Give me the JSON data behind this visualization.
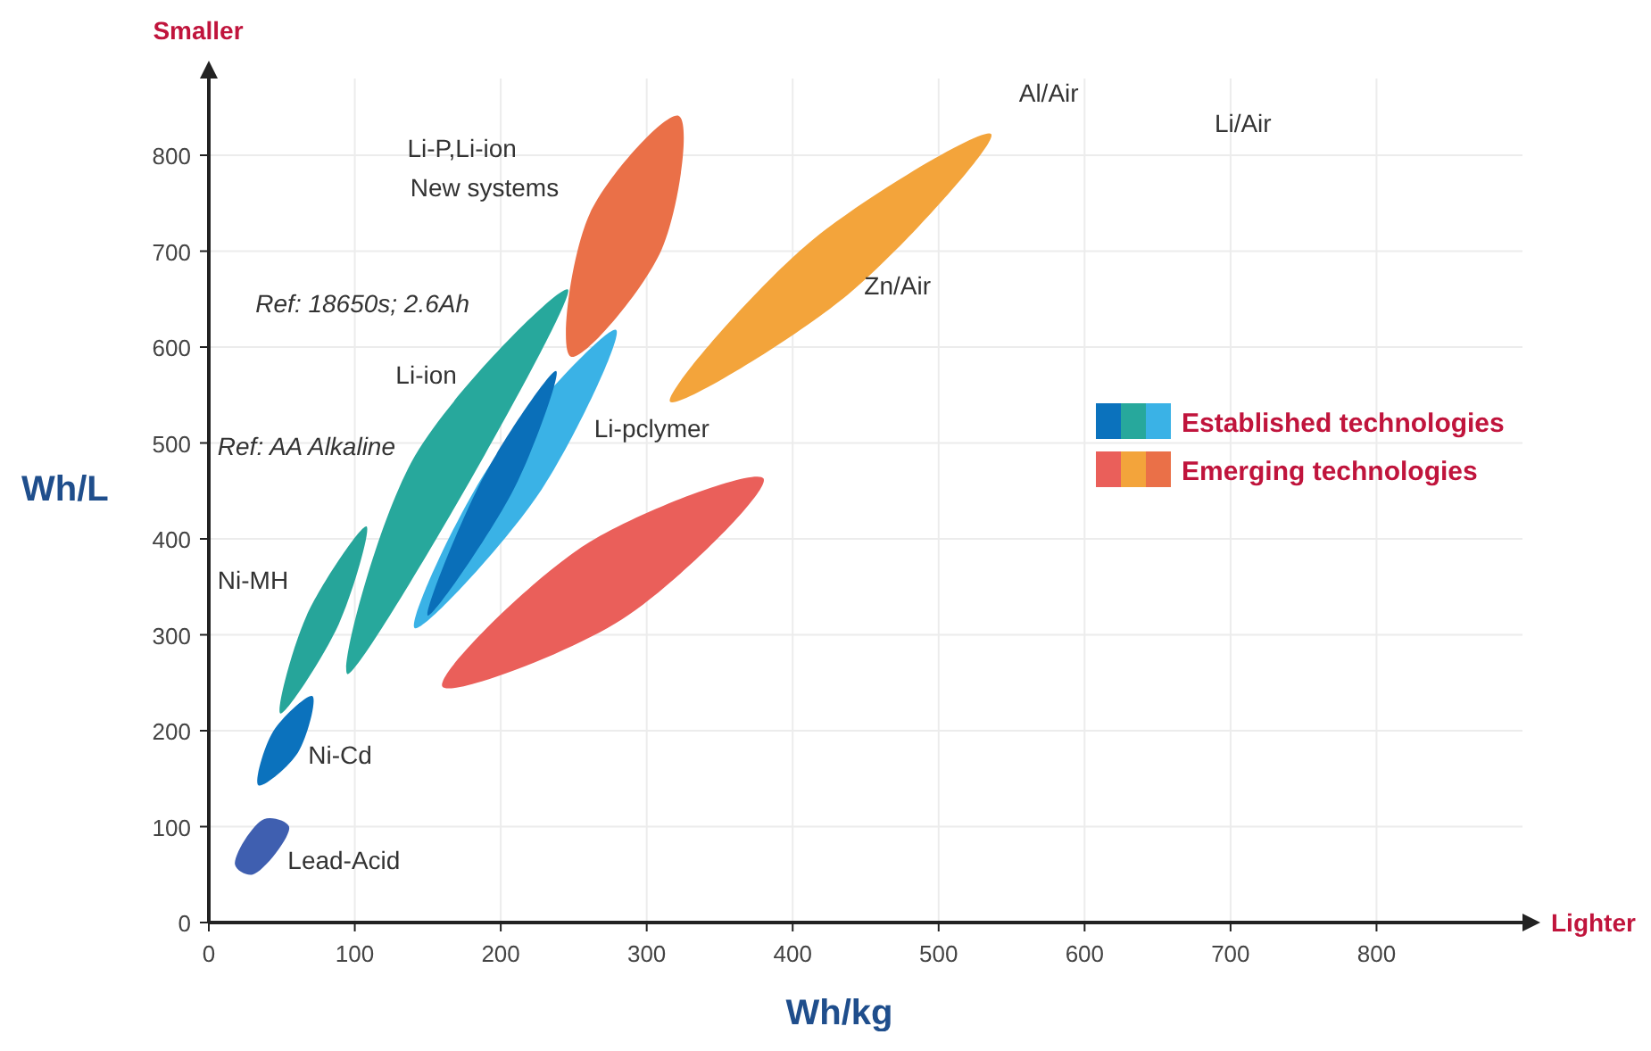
{
  "chart_data": {
    "type": "area",
    "xlabel": "Wh/kg",
    "ylabel": "Wh/L",
    "xlim": [
      0,
      900
    ],
    "ylim": [
      0,
      880
    ],
    "xticks": [
      0,
      100,
      200,
      300,
      400,
      500,
      600,
      700,
      800
    ],
    "yticks": [
      0,
      100,
      200,
      300,
      400,
      500,
      600,
      700,
      800
    ],
    "grid": true,
    "series": [
      {
        "color": "#3f5fb0",
        "x": [
          18,
          30,
          55,
          38
        ],
        "values": [
          60,
          50,
          100,
          108
        ]
      },
      {
        "color": "#0b72bd",
        "x": [
          34,
          61,
          71,
          44
        ],
        "values": [
          143,
          177,
          236,
          199
        ]
      },
      {
        "color": "#26a59a",
        "x": [
          49,
          89,
          108,
          67
        ],
        "values": [
          218,
          311,
          413,
          320
        ]
      },
      {
        "color": "#27a89c",
        "x": [
          95,
          199,
          246,
          141
        ],
        "values": [
          259,
          null,
          660,
          486
        ]
      },
      {
        "color": "#3ab2e6",
        "x": [
          141,
          226,
          279,
          193
        ],
        "values": [
          307,
          447,
          618,
          478
        ]
      },
      {
        "color": "#0a6fb9",
        "x": [
          150,
          209,
          238,
          189
        ],
        "values": [
          320,
          452,
          575,
          467
        ]
      },
      {
        "color": "#ea7048",
        "x": [
          248,
          310,
          322,
          261
        ],
        "values": [
          590,
          701,
          841,
          739
        ]
      },
      {
        "color": "#f3a43b",
        "x": [
          316,
          438,
          536,
          413
        ],
        "values": [
          543,
          655,
          822,
          711
        ]
      },
      {
        "color": "#ea5f5a",
        "x": [
          160,
          283,
          380,
          258
        ],
        "values": [
          246,
          316,
          463,
          394
        ]
      }
    ],
    "annotations": [
      "Smaller",
      "Lighter",
      "Established technologies",
      "Emerging technologies",
      "Lead-Acid",
      "Ni-Cd",
      "Ni-MH",
      "Li-ion",
      "Li-pclymer",
      "Zn/Air",
      "Li-P,Li-ion",
      "New systems",
      "Al/Air",
      "Li/Air",
      "Ref: 18650s; 2.6Ah",
      "Ref: AA Alkaline"
    ]
  }
}
